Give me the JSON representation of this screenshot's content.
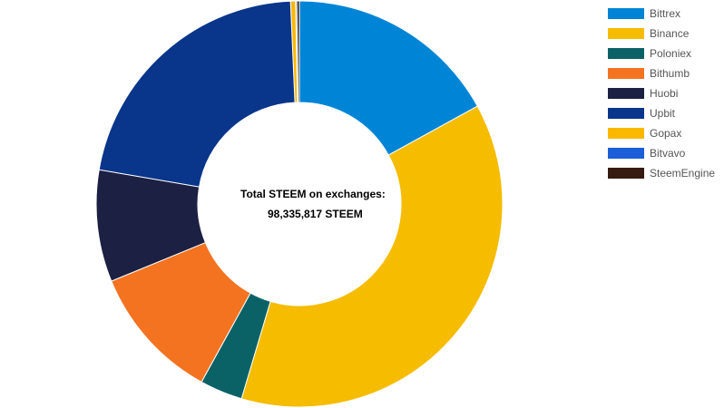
{
  "chart_data": {
    "type": "pie",
    "variant": "doughnut",
    "center_label": "Total STEEM on exchanges:",
    "center_value": "98,335,817 STEEM",
    "slices": [
      {
        "label": "Bittrex",
        "value": 17.0,
        "color": "#0085d6"
      },
      {
        "label": "Binance",
        "value": 37.6,
        "color": "#f5bc00"
      },
      {
        "label": "Poloniex",
        "value": 3.4,
        "color": "#0b6266"
      },
      {
        "label": "Bithumb",
        "value": 10.8,
        "color": "#f37321"
      },
      {
        "label": "Huobi",
        "value": 8.9,
        "color": "#1c2042"
      },
      {
        "label": "Upbit",
        "value": 21.6,
        "color": "#09358a"
      },
      {
        "label": "Gopax",
        "value": 0.4,
        "color": "#fbb800"
      },
      {
        "label": "Bitvavo",
        "value": 0.1,
        "color": "#1b5ed8"
      },
      {
        "label": "SteemEngine",
        "value": 0.2,
        "color": "#351b10"
      }
    ],
    "legend_position": "top-right"
  }
}
